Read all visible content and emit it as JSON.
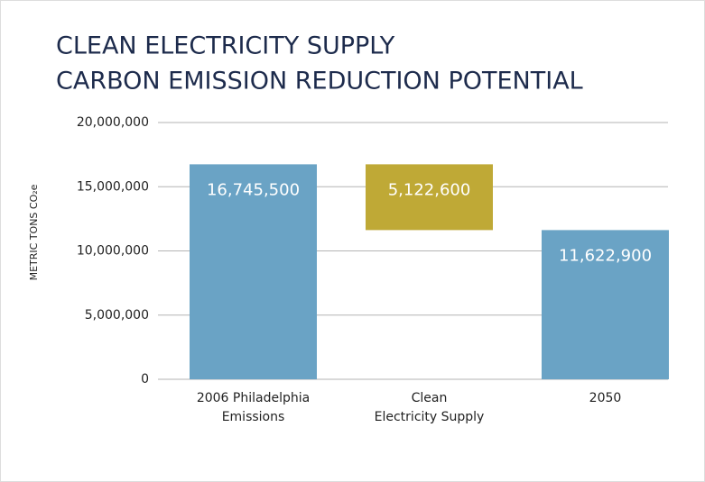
{
  "chart_data": {
    "type": "waterfall",
    "title": [
      "CLEAN ELECTRICITY SUPPLY",
      "CARBON EMISSION REDUCTION POTENTIAL"
    ],
    "y_label": "METRIC TONS CO₂e",
    "categories": [
      [
        "2006 Philadelphia",
        "Emissions"
      ],
      [
        "Clean",
        "Electricity Supply"
      ],
      [
        "2050"
      ]
    ],
    "values": [
      16745500,
      5122600,
      11622900
    ],
    "measures": [
      "total",
      "decrease",
      "total"
    ],
    "value_labels": [
      "16,745,500",
      "5,122,600",
      "11,622,900"
    ],
    "colors": [
      "#6aa3c5",
      "#bfa936",
      "#6aa3c5"
    ],
    "ylim": [
      0,
      20000000
    ],
    "yticks": [
      0,
      {
        "value": 5000000,
        "label": "5,000,000"
      },
      {
        "value": 10000000,
        "label": "10,000,000"
      },
      {
        "value": 15000000,
        "label": "15,000,000"
      },
      {
        "value": 20000000,
        "label": "20,000,000"
      }
    ],
    "grid": true
  }
}
